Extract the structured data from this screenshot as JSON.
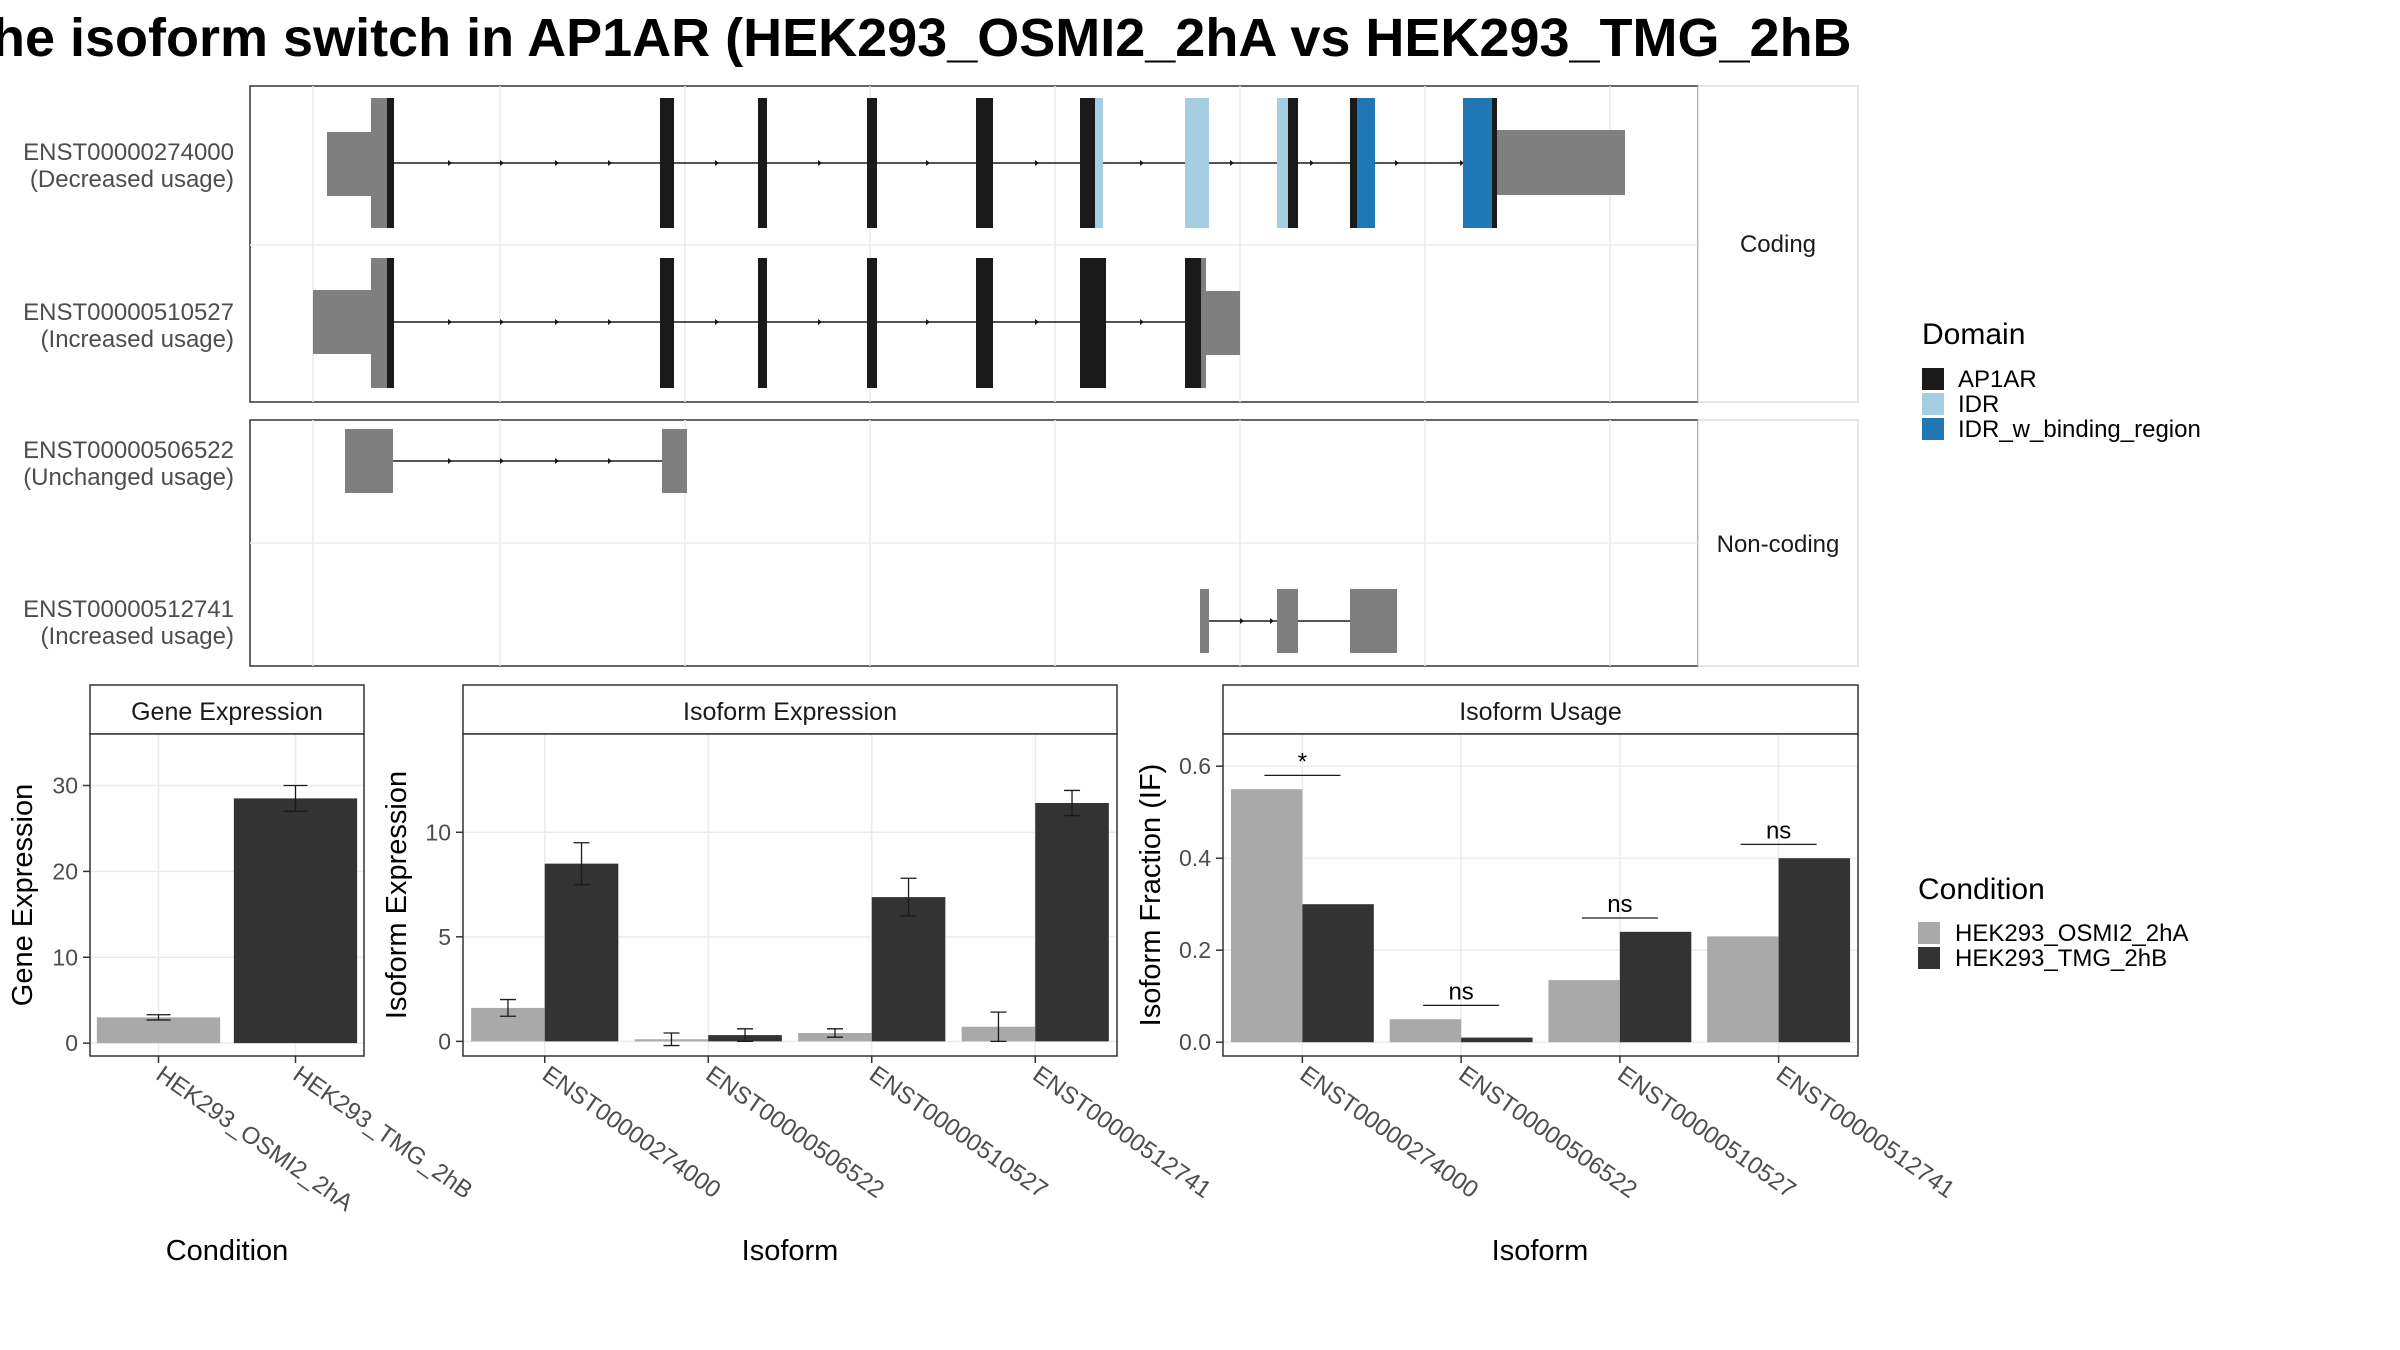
{
  "title": "he isoform switch in AP1AR (HEK293_OSMI2_2hA vs HEK293_TMG_2hB",
  "colors": {
    "AP1AR": "#1a1a1a",
    "IDR": "#a6cee3",
    "IDR_w_binding_region": "#1f78b4",
    "noncoding": "#7f7f7f",
    "HEK293_OSMI2_2hA": "#a9a9a9",
    "HEK293_TMG_2hB": "#333333",
    "grid": "#ebebeb",
    "border": "#333333"
  },
  "structure": {
    "facets": [
      "Coding",
      "Non-coding"
    ],
    "transcripts": [
      {
        "id": "ENST00000274000",
        "usage": "(Decreased usage)",
        "facet": "Coding"
      },
      {
        "id": "ENST00000510527",
        "usage": "(Increased usage)",
        "facet": "Coding"
      },
      {
        "id": "ENST00000506522",
        "usage": "(Unchanged usage)",
        "facet": "Non-coding"
      },
      {
        "id": "ENST00000512741",
        "usage": "(Increased usage)",
        "facet": "Non-coding"
      }
    ],
    "domain_legend": {
      "title": "Domain",
      "entries": [
        "AP1AR",
        "IDR",
        "IDR_w_binding_region"
      ]
    }
  },
  "condition_legend": {
    "title": "Condition",
    "entries": [
      "HEK293_OSMI2_2hA",
      "HEK293_TMG_2hB"
    ]
  },
  "chart_data": [
    {
      "type": "bar",
      "strip": "Gene Expression",
      "xlabel": "Condition",
      "ylabel": "Gene Expression",
      "ylim": [
        -1.5,
        36
      ],
      "yticks": [
        0,
        10,
        20,
        30
      ],
      "categories": [
        "HEK293_OSMI2_2hA",
        "HEK293_TMG_2hB"
      ],
      "values": [
        3.0,
        28.5
      ],
      "errors": [
        0.3,
        1.5
      ]
    },
    {
      "type": "bar",
      "strip": "Isoform Expression",
      "xlabel": "Isoform",
      "ylabel": "Isoform Expression",
      "ylim": [
        -0.7,
        14.7
      ],
      "yticks": [
        0,
        5,
        10
      ],
      "categories": [
        "ENST00000274000",
        "ENST00000506522",
        "ENST00000510527",
        "ENST00000512741"
      ],
      "series": [
        {
          "name": "HEK293_OSMI2_2hA",
          "values": [
            1.6,
            0.1,
            0.4,
            0.7
          ],
          "errors": [
            0.4,
            0.3,
            0.2,
            0.7
          ]
        },
        {
          "name": "HEK293_TMG_2hB",
          "values": [
            8.5,
            0.3,
            6.9,
            11.4
          ],
          "errors": [
            1.0,
            0.3,
            0.9,
            0.6
          ]
        }
      ]
    },
    {
      "type": "bar",
      "strip": "Isoform Usage",
      "xlabel": "Isoform",
      "ylabel": "Isoform Fraction (IF)",
      "ylim": [
        -0.03,
        0.67
      ],
      "yticks": [
        0.0,
        0.2,
        0.4,
        0.6
      ],
      "ytick_labels": [
        "0.0",
        "0.2",
        "0.4",
        "0.6"
      ],
      "categories": [
        "ENST00000274000",
        "ENST00000506522",
        "ENST00000510527",
        "ENST00000512741"
      ],
      "series": [
        {
          "name": "HEK293_OSMI2_2hA",
          "values": [
            0.55,
            0.05,
            0.135,
            0.23
          ]
        },
        {
          "name": "HEK293_TMG_2hB",
          "values": [
            0.3,
            0.01,
            0.24,
            0.4
          ]
        }
      ],
      "significance": [
        "*",
        "ns",
        "ns",
        "ns"
      ],
      "significance_y": [
        0.58,
        0.08,
        0.27,
        0.43
      ]
    }
  ]
}
